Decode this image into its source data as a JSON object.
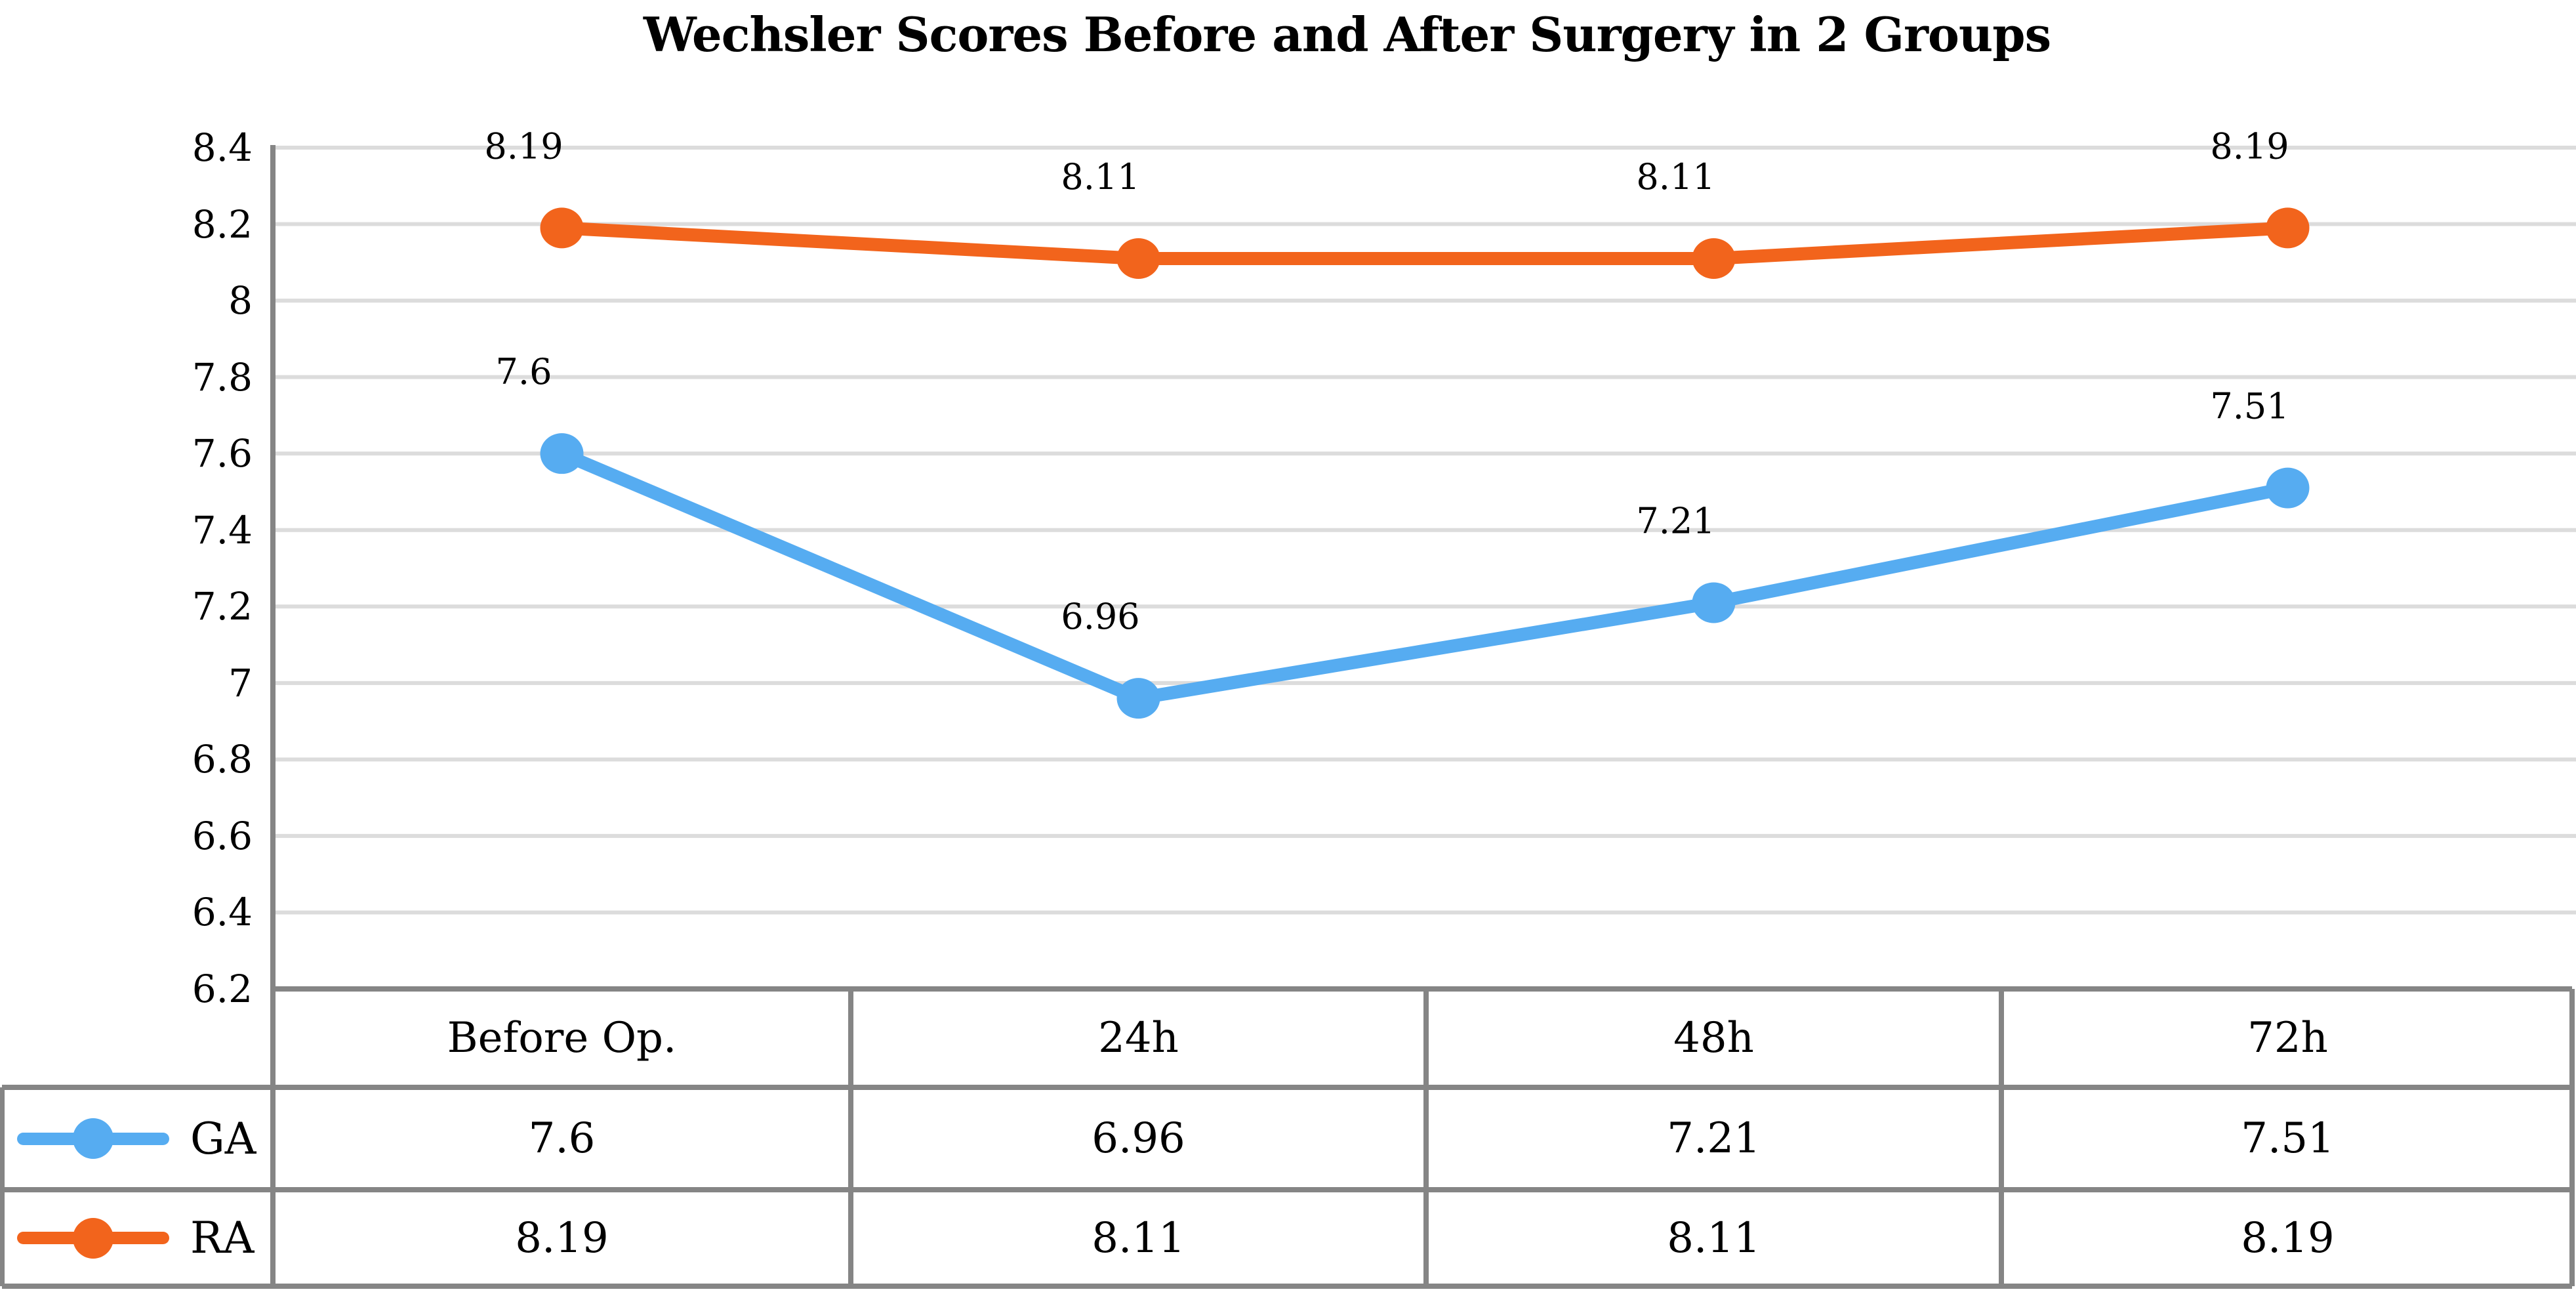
{
  "chart_data": {
    "type": "line",
    "title": "Wechsler Scores Before and After Surgery in 2 Groups",
    "categories": [
      "Before Op.",
      "24h",
      "48h",
      "72h"
    ],
    "series": [
      {
        "name": "GA",
        "color": "#56ACF1",
        "values": [
          7.6,
          6.96,
          7.21,
          7.51
        ]
      },
      {
        "name": "RA",
        "color": "#F2641C",
        "values": [
          8.19,
          8.11,
          8.11,
          8.19
        ]
      }
    ],
    "ylim": [
      6.2,
      8.4
    ],
    "yticks": [
      8.4,
      8.2,
      8,
      7.8,
      7.6,
      7.4,
      7.2,
      7,
      6.8,
      6.6,
      6.4,
      6.2
    ],
    "grid": true,
    "xlabel": "",
    "ylabel": "",
    "legend_position": "table-left",
    "colors": {
      "gridline": "#DCDCDC",
      "axis_and_borders": "#858585",
      "text": "#000000",
      "background": "#FFFFFF"
    }
  }
}
